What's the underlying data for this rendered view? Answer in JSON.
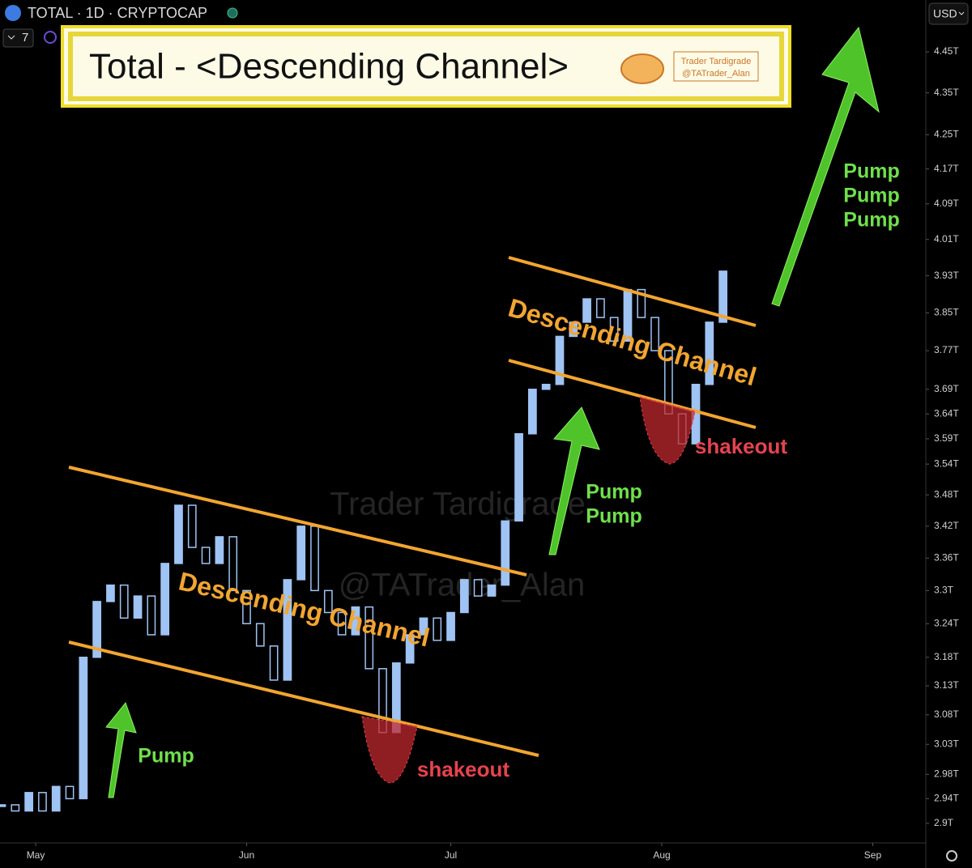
{
  "header": {
    "symbol": "TOTAL · 1D · CRYPTOCAP",
    "currency": "USD",
    "indicator_count": "7"
  },
  "chart_data": {
    "type": "candlestick",
    "title": "Total - <Descending Channel>",
    "badge": [
      "Trader Tardigrade",
      "@TATrader_Alan"
    ],
    "watermark": [
      "Trader Tardigrade",
      "@TATrader_Alan"
    ],
    "channel_labels": [
      "Descending Channel",
      "Descending Channel"
    ],
    "pump_labels": [
      [
        "Pump"
      ],
      [
        "Pump",
        "Pump"
      ],
      [
        "Pump",
        "Pump",
        "Pump"
      ]
    ],
    "shakeout_labels": [
      "shakeout",
      "shakeout"
    ],
    "color": "#9fc3f3",
    "log_scale": true,
    "x": [
      -5,
      -3,
      -1,
      1,
      3,
      5,
      7,
      9,
      11,
      13,
      15,
      17,
      19,
      21,
      23,
      25,
      27,
      29,
      31,
      33,
      35,
      37,
      39,
      41,
      43,
      45,
      47,
      49,
      51,
      53,
      55,
      57,
      59,
      61,
      63,
      65,
      67,
      69,
      71,
      73,
      75,
      77,
      79,
      81,
      83,
      85,
      87,
      89,
      91,
      93,
      95,
      97,
      99,
      101
    ],
    "values": [
      2.93,
      2.92,
      2.95,
      2.92,
      2.96,
      2.94,
      3.18,
      3.28,
      3.31,
      3.25,
      3.29,
      3.22,
      3.35,
      3.46,
      3.38,
      3.35,
      3.4,
      3.3,
      3.24,
      3.2,
      3.14,
      3.32,
      3.42,
      3.3,
      3.26,
      3.22,
      3.27,
      3.16,
      3.05,
      3.17,
      3.22,
      3.25,
      3.21,
      3.26,
      3.32,
      3.29,
      3.31,
      3.43,
      3.6,
      3.69,
      3.7,
      3.8,
      3.83,
      3.88,
      3.84,
      3.79,
      3.9,
      3.84,
      3.77,
      3.64,
      3.58,
      3.7,
      3.83,
      3.94
    ],
    "xlim": [
      -5.24,
      130.8
    ],
    "xticks": [
      {
        "value": 0,
        "label": "May"
      },
      {
        "value": 31,
        "label": "Jun"
      },
      {
        "value": 61,
        "label": "Jul"
      },
      {
        "value": 92,
        "label": "Aug"
      },
      {
        "value": 123,
        "label": "Sep"
      }
    ],
    "ylim": [
      2.87,
      4.58
    ],
    "yticks": [
      {
        "value": 4.45,
        "label": "4.45T"
      },
      {
        "value": 4.35,
        "label": "4.35T"
      },
      {
        "value": 4.25,
        "label": "4.25T"
      },
      {
        "value": 4.17,
        "label": "4.17T"
      },
      {
        "value": 4.09,
        "label": "4.09T"
      },
      {
        "value": 4.01,
        "label": "4.01T"
      },
      {
        "value": 3.93,
        "label": "3.93T"
      },
      {
        "value": 3.85,
        "label": "3.85T"
      },
      {
        "value": 3.77,
        "label": "3.77T"
      },
      {
        "value": 3.69,
        "label": "3.69T"
      },
      {
        "value": 3.64,
        "label": "3.64T"
      },
      {
        "value": 3.59,
        "label": "3.59T"
      },
      {
        "value": 3.54,
        "label": "3.54T"
      },
      {
        "value": 3.48,
        "label": "3.48T"
      },
      {
        "value": 3.42,
        "label": "3.42T"
      },
      {
        "value": 3.36,
        "label": "3.36T"
      },
      {
        "value": 3.3,
        "label": "3.3T"
      },
      {
        "value": 3.24,
        "label": "3.24T"
      },
      {
        "value": 3.18,
        "label": "3.18T"
      },
      {
        "value": 3.13,
        "label": "3.13T"
      },
      {
        "value": 3.08,
        "label": "3.08T"
      },
      {
        "value": 3.03,
        "label": "3.03T"
      },
      {
        "value": 2.98,
        "label": "2.98T"
      },
      {
        "value": 2.94,
        "label": "2.94T"
      },
      {
        "value": 2.9,
        "label": "2.9T"
      }
    ]
  }
}
